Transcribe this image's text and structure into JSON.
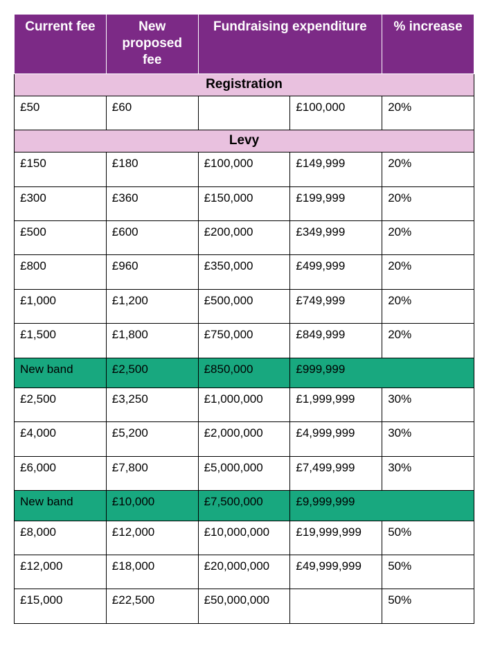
{
  "colors": {
    "header_bg": "#7c2a86",
    "header_fg": "#ffffff",
    "section_bg": "#e9c1df",
    "section_fg": "#000000",
    "newband_bg": "#18a87f",
    "newband_fg": "#000000",
    "cell_bg": "#ffffff",
    "cell_fg": "#000000",
    "cell_border": "#000000"
  },
  "headers": {
    "current_fee": "Current fee",
    "new_proposed_fee": "New proposed fee",
    "fundraising_expenditure": "Fundraising expenditure",
    "percent_increase": "% increase"
  },
  "rows": [
    {
      "type": "section",
      "label": "Registration"
    },
    {
      "type": "data",
      "cf": "£50",
      "np": "£60",
      "fe1": "",
      "fe2": "£100,000",
      "pi": "20%"
    },
    {
      "type": "section",
      "label": "Levy"
    },
    {
      "type": "data",
      "cf": "£150",
      "np": "£180",
      "fe1": "£100,000",
      "fe2": "£149,999",
      "pi": "20%"
    },
    {
      "type": "data",
      "cf": "£300",
      "np": "£360",
      "fe1": "£150,000",
      "fe2": "£199,999",
      "pi": "20%"
    },
    {
      "type": "data",
      "cf": "£500",
      "np": "£600",
      "fe1": "£200,000",
      "fe2": "£349,999",
      "pi": "20%"
    },
    {
      "type": "data",
      "cf": "£800",
      "np": "£960",
      "fe1": "£350,000",
      "fe2": "£499,999",
      "pi": "20%"
    },
    {
      "type": "data",
      "cf": "£1,000",
      "np": "£1,200",
      "fe1": "£500,000",
      "fe2": "£749,999",
      "pi": "20%"
    },
    {
      "type": "data",
      "cf": "£1,500",
      "np": "£1,800",
      "fe1": "£750,000",
      "fe2": "£849,999",
      "pi": "20%"
    },
    {
      "type": "newband",
      "cf": "New band",
      "np": "£2,500",
      "fe1": "£850,000",
      "fe2": "£999,999"
    },
    {
      "type": "data",
      "cf": "£2,500",
      "np": "£3,250",
      "fe1": "£1,000,000",
      "fe2": "£1,999,999",
      "pi": "30%"
    },
    {
      "type": "data",
      "cf": "£4,000",
      "np": "£5,200",
      "fe1": "£2,000,000",
      "fe2": "£4,999,999",
      "pi": "30%"
    },
    {
      "type": "data",
      "cf": "£6,000",
      "np": "£7,800",
      "fe1": "£5,000,000",
      "fe2": "£7,499,999",
      "pi": "30%"
    },
    {
      "type": "newband",
      "cf": "New band",
      "np": "£10,000",
      "fe1": "£7,500,000",
      "fe2": "£9,999,999"
    },
    {
      "type": "data",
      "cf": "£8,000",
      "np": "£12,000",
      "fe1": "£10,000,000",
      "fe2": "£19,999,999",
      "pi": "50%"
    },
    {
      "type": "data",
      "cf": "£12,000",
      "np": "£18,000",
      "fe1": "£20,000,000",
      "fe2": "£49,999,999",
      "pi": "50%"
    },
    {
      "type": "data",
      "cf": "£15,000",
      "np": "£22,500",
      "fe1": "£50,000,000",
      "fe2": "",
      "pi": "50%"
    }
  ]
}
